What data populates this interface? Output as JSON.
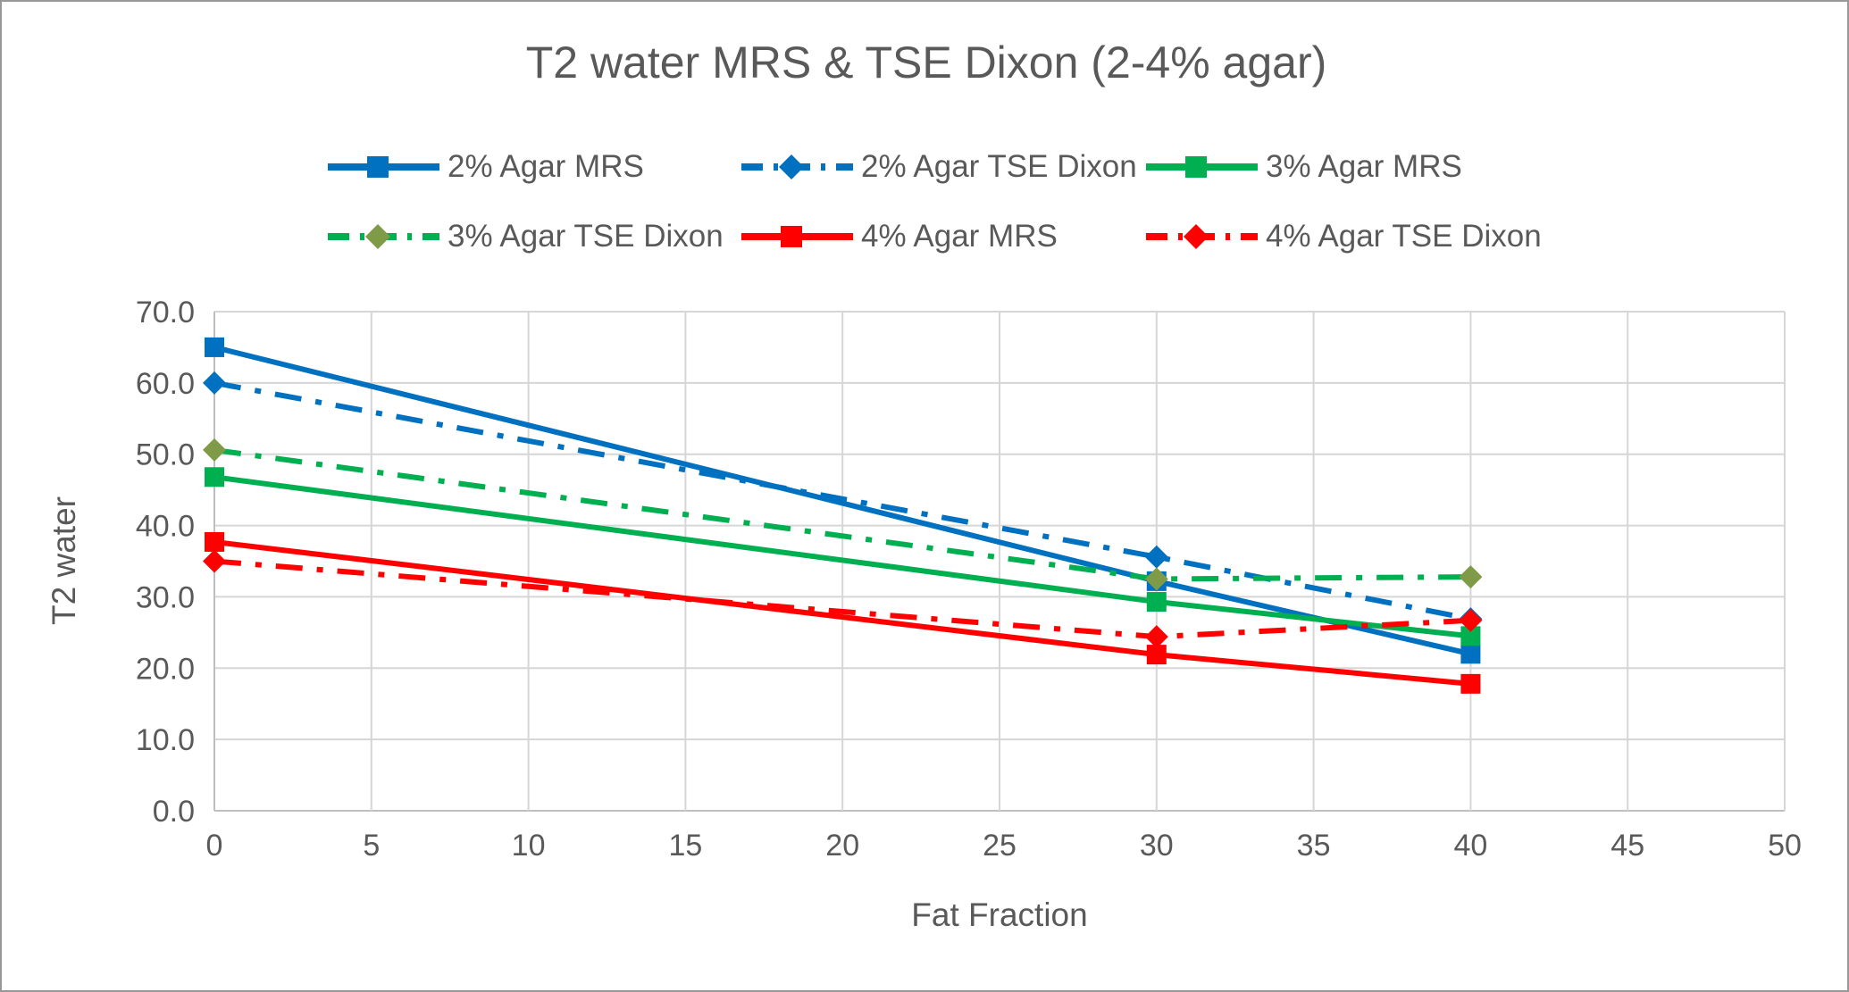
{
  "chart_data": {
    "type": "line",
    "title": "T2 water MRS & TSE Dixon (2-4% agar)",
    "xlabel": "Fat Fraction",
    "ylabel": "T2 water",
    "xlim": [
      0,
      50
    ],
    "ylim": [
      0,
      70
    ],
    "xticks": [
      0,
      5,
      10,
      15,
      20,
      25,
      30,
      35,
      40,
      45,
      50
    ],
    "yticks": [
      0,
      10,
      20,
      30,
      40,
      50,
      60,
      70
    ],
    "ytick_labels": [
      "0.0",
      "10.0",
      "20.0",
      "30.0",
      "40.0",
      "50.0",
      "60.0",
      "70.0"
    ],
    "x": [
      0,
      30,
      40
    ],
    "series": [
      {
        "name": "2% Agar MRS",
        "color": "#0070C0",
        "line_style": "solid",
        "marker": "square",
        "marker_color": "#0070C0",
        "values": [
          65.0,
          32.2,
          22.0
        ]
      },
      {
        "name": "2% Agar TSE Dixon",
        "color": "#0070C0",
        "line_style": "dash-dot",
        "marker": "diamond",
        "marker_color": "#0070C0",
        "values": [
          60.0,
          35.6,
          26.9
        ]
      },
      {
        "name": "3% Agar MRS",
        "color": "#00B050",
        "line_style": "solid",
        "marker": "square",
        "marker_color": "#00B050",
        "values": [
          46.8,
          29.3,
          24.5
        ]
      },
      {
        "name": "3% Agar TSE Dixon",
        "color": "#00B050",
        "line_style": "dash-dot",
        "marker": "diamond",
        "marker_color": "#7F9B48",
        "values": [
          50.6,
          32.5,
          32.8
        ]
      },
      {
        "name": "4% Agar MRS",
        "color": "#FF0000",
        "line_style": "solid",
        "marker": "square",
        "marker_color": "#FF0000",
        "values": [
          37.7,
          21.9,
          17.8
        ]
      },
      {
        "name": "4% Agar TSE Dixon",
        "color": "#FF0000",
        "line_style": "dash-dot",
        "marker": "diamond",
        "marker_color": "#FF0000",
        "values": [
          35.0,
          24.4,
          26.7
        ]
      }
    ],
    "legend_rows": [
      [
        0,
        1,
        2
      ],
      [
        3,
        4,
        5
      ]
    ],
    "legend_position": "top",
    "grid": true,
    "colors": {
      "grid": "#D6D6D6",
      "axis": "#BFBFBF",
      "text": "#595959",
      "border": "#989898",
      "background": "#FFFFFF"
    }
  }
}
